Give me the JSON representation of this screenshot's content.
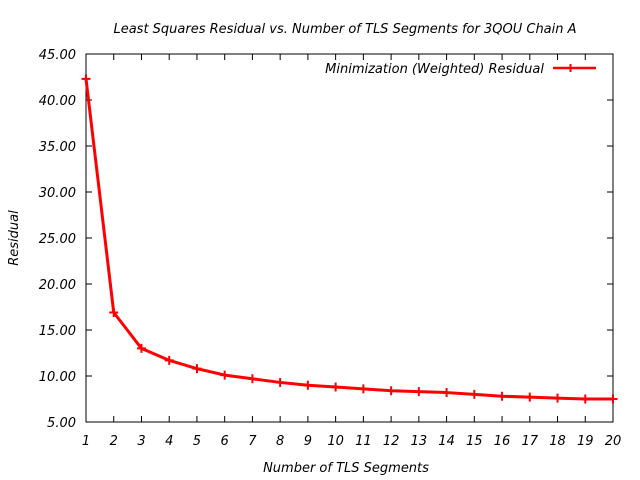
{
  "chart_data": {
    "type": "line",
    "title": "Least Squares Residual vs. Number of TLS Segments for 3QOU Chain A",
    "xlabel": "Number of TLS Segments",
    "ylabel": "Residual",
    "xlim": [
      1,
      20
    ],
    "ylim": [
      5,
      45
    ],
    "x_ticks": [
      "1",
      "2",
      "3",
      "4",
      "5",
      "6",
      "7",
      "8",
      "9",
      "10",
      "11",
      "12",
      "13",
      "14",
      "15",
      "16",
      "17",
      "18",
      "19",
      "20"
    ],
    "y_ticks": [
      "5.00",
      "10.00",
      "15.00",
      "20.00",
      "25.00",
      "30.00",
      "35.00",
      "40.00",
      "45.00"
    ],
    "legend_position": "top-right",
    "series": [
      {
        "name": "Minimization (Weighted) Residual",
        "color": "#ff0000",
        "x": [
          1,
          2,
          3,
          4,
          5,
          6,
          7,
          8,
          9,
          10,
          11,
          12,
          13,
          14,
          15,
          16,
          17,
          18,
          19,
          20
        ],
        "values": [
          42.3,
          16.9,
          13.0,
          11.7,
          10.8,
          10.1,
          9.7,
          9.3,
          9.0,
          8.8,
          8.6,
          8.4,
          8.3,
          8.2,
          8.0,
          7.8,
          7.7,
          7.6,
          7.5,
          7.5
        ]
      }
    ]
  }
}
